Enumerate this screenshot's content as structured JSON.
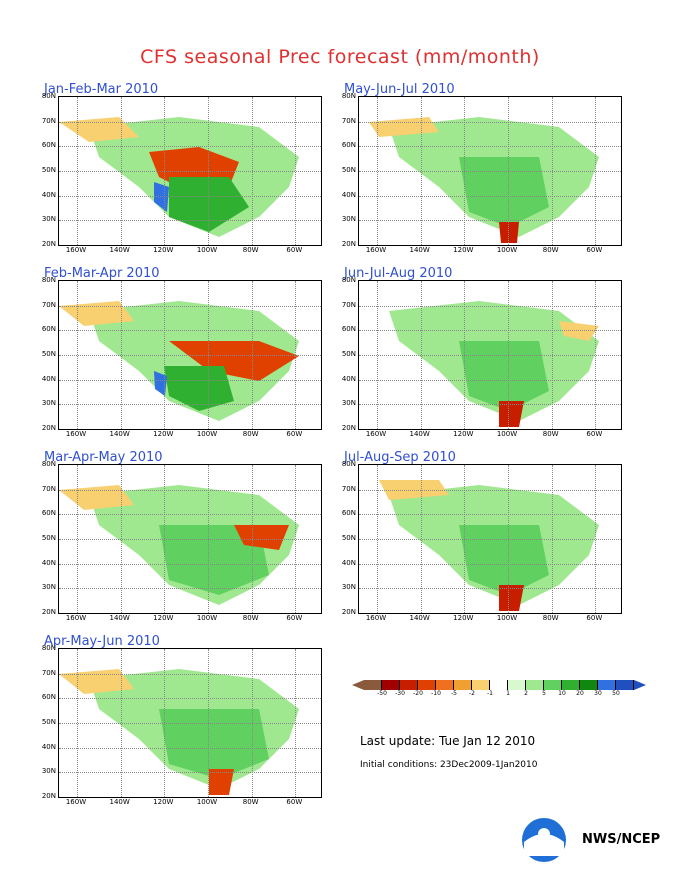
{
  "title": "CFS seasonal Prec forecast (mm/month)",
  "panels": [
    {
      "title": "Jan-Feb-Mar 2010"
    },
    {
      "title": "May-Jun-Jul 2010"
    },
    {
      "title": "Feb-Mar-Apr 2010"
    },
    {
      "title": "Jun-Jul-Aug 2010"
    },
    {
      "title": "Mar-Apr-May 2010"
    },
    {
      "title": "Jul-Aug-Sep 2010"
    },
    {
      "title": "Apr-May-Jun 2010"
    }
  ],
  "y_ticks": [
    "80N",
    "70N",
    "60N",
    "50N",
    "40N",
    "30N",
    "20N"
  ],
  "x_ticks": [
    "160W",
    "140W",
    "120W",
    "100W",
    "80W",
    "60W"
  ],
  "legend": {
    "labels": [
      "-50",
      "-30",
      "-20",
      "-10",
      "-5",
      "-2",
      "-1",
      "1",
      "2",
      "5",
      "10",
      "20",
      "30",
      "50"
    ],
    "colors": [
      "#8a5a3c",
      "#a00000",
      "#c81e00",
      "#e04000",
      "#f07020",
      "#f0a030",
      "#f8d070",
      "#ffffff",
      "#d8f8d0",
      "#a0e890",
      "#60d060",
      "#30b030",
      "#108810",
      "#3070e0",
      "#2050c0"
    ]
  },
  "last_update": "Last update: Tue Jan 12 2010",
  "initial_conditions": "Initial conditions: 23Dec2009-1Jan2010",
  "agency": "NWS/NCEP",
  "colors": {
    "title": "#e03030",
    "panel_title": "#3050d0"
  }
}
